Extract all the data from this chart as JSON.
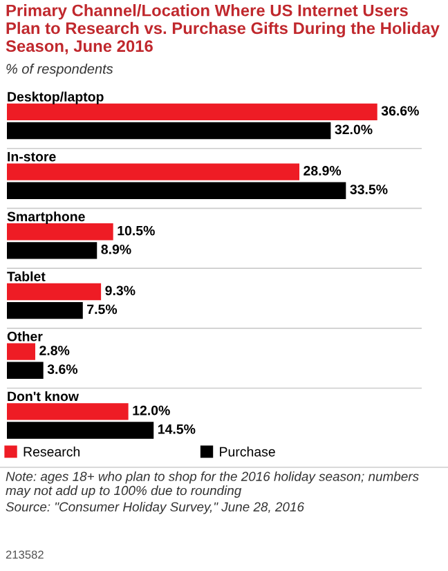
{
  "chart_data": {
    "type": "bar",
    "orientation": "horizontal",
    "title": "Primary Channel/Location Where US Internet Users Plan to Research vs. Purchase Gifts During the Holiday Season, June 2016",
    "subtitle": "% of respondents",
    "categories": [
      "Desktop/laptop",
      "In-store",
      "Smartphone",
      "Tablet",
      "Other",
      "Don't know"
    ],
    "series": [
      {
        "name": "Research",
        "color": "#ee1c25",
        "values": [
          36.6,
          28.9,
          10.5,
          9.3,
          2.8,
          12.0
        ],
        "value_labels": [
          "36.6%",
          "28.9%",
          "10.5%",
          "9.3%",
          "2.8%",
          "12.0%"
        ]
      },
      {
        "name": "Purchase",
        "color": "#000000",
        "values": [
          32.0,
          33.5,
          8.9,
          7.5,
          3.6,
          14.5
        ],
        "value_labels": [
          "32.0%",
          "33.5%",
          "8.9%",
          "7.5%",
          "3.6%",
          "14.5%"
        ]
      }
    ],
    "legend": "bottom",
    "annotations": [
      "Note: ages 18+ who plan to shop for the 2016 holiday season; numbers may not add up to 100% due to rounding",
      "Source: \"Consumer Holiday Survey,\" June 28, 2016",
      "213582"
    ]
  }
}
